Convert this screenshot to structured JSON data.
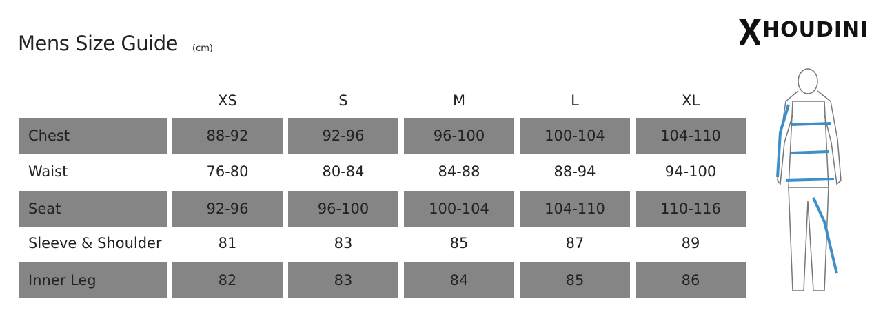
{
  "header": {
    "title": "Mens Size Guide",
    "unit": "(cm)",
    "brand": "HOUDINI"
  },
  "table": {
    "columns": [
      "XS",
      "S",
      "M",
      "L",
      "XL"
    ],
    "rows": [
      [
        "Chest",
        "88-92",
        "92-96",
        "96-100",
        "100-104",
        "104-110"
      ],
      [
        "Waist",
        "76-80",
        "80-84",
        "84-88",
        "88-94",
        "94-100"
      ],
      [
        "Seat",
        "92-96",
        "96-100",
        "100-104",
        "104-110",
        "110-116"
      ],
      [
        "Sleeve & Shoulder",
        "81",
        "83",
        "85",
        "87",
        "89"
      ],
      [
        "Inner Leg",
        "82",
        "83",
        "84",
        "85",
        "86"
      ]
    ]
  }
}
